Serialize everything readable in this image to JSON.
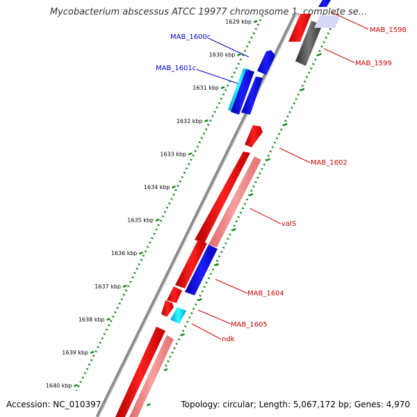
{
  "title": "Mycobacterium abscessus ATCC 19977 chromosome 1, complete se...",
  "footer": {
    "accession": "Accession: NC_010397",
    "info": "Topology: circular; Length: 5,067,172 bp; Genes: 4,970"
  },
  "axis": {
    "unit": "kbp",
    "ticks": [
      "1629 kbp",
      "1630 kbp",
      "1631 kbp",
      "1632 kbp",
      "1633 kbp",
      "1634 kbp",
      "1635 kbp",
      "1636 kbp",
      "1637 kbp",
      "1638 kbp",
      "1639 kbp",
      "1640 kbp"
    ]
  },
  "genes": [
    {
      "label": "MAB_1598",
      "color": "#cc0000"
    },
    {
      "label": "MAB_1599",
      "color": "#cc0000"
    },
    {
      "label": "MAB_1600c",
      "color": "#0000cc"
    },
    {
      "label": "MAB_1601c",
      "color": "#0000cc"
    },
    {
      "label": "MAB_1602",
      "color": "#cc0000"
    },
    {
      "label": "valS",
      "color": "#cc0000"
    },
    {
      "label": "MAB_1604",
      "color": "#cc0000"
    },
    {
      "label": "MAB_1605",
      "color": "#cc0000"
    },
    {
      "label": "ndk",
      "color": "#cc0000"
    }
  ],
  "colors": {
    "backbone": "#8a8a8a",
    "forward_cds": "#ff0000",
    "forward_rna": "#f08080",
    "reverse_cds": "#0000ee",
    "gc_skew": "#00ccee",
    "pseudo": "#555555",
    "tick_dots": "#118811"
  }
}
